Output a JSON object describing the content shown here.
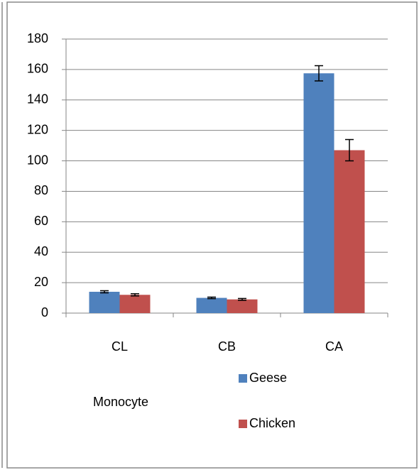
{
  "chart_data": {
    "type": "bar",
    "xlabel": "Monocyte",
    "categories": [
      "CL",
      "CB",
      "CA"
    ],
    "series": [
      {
        "name": "Geese",
        "color": "#4f81bd",
        "values": [
          14,
          10,
          157.5
        ],
        "errors": [
          0.7,
          0.5,
          5
        ]
      },
      {
        "name": "Chicken",
        "color": "#c0504d",
        "values": [
          12,
          9,
          107
        ],
        "errors": [
          0.7,
          0.6,
          7
        ]
      }
    ],
    "ylim": [
      0,
      180
    ],
    "yticks": [
      0,
      20,
      40,
      60,
      80,
      100,
      120,
      140,
      160,
      180
    ],
    "grid": true
  }
}
